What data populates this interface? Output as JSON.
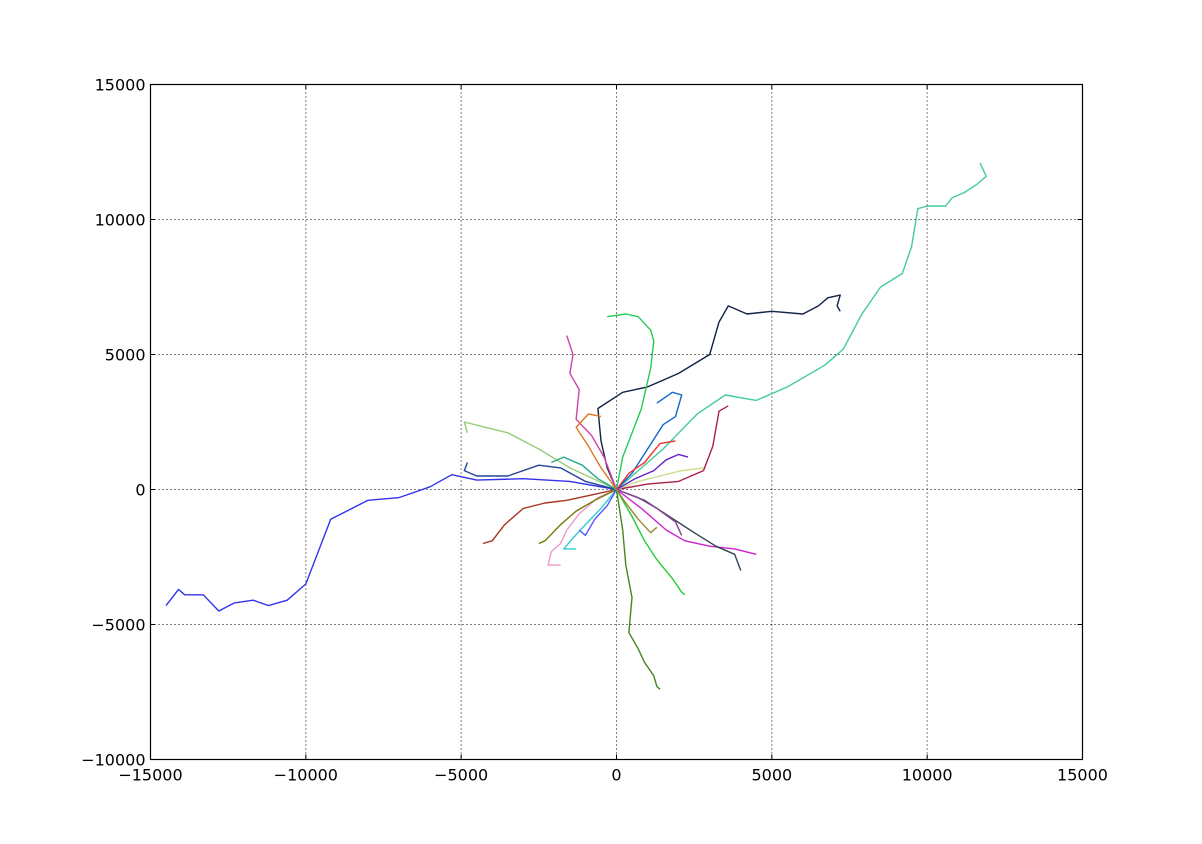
{
  "chart_data": {
    "type": "line",
    "title": "",
    "xlabel": "",
    "ylabel": "",
    "xlim": [
      -15000,
      15000
    ],
    "ylim": [
      -10000,
      15000
    ],
    "grid": true,
    "x_ticks": [
      -15000,
      -10000,
      -5000,
      0,
      5000,
      10000,
      15000
    ],
    "x_tick_labels": [
      "−15000",
      "−10000",
      "−5000",
      "0",
      "5000",
      "10000",
      "15000"
    ],
    "y_ticks": [
      -10000,
      -5000,
      0,
      5000,
      10000,
      15000
    ],
    "y_tick_labels": [
      "−10000",
      "−5000",
      "0",
      "5000",
      "10000",
      "15000"
    ],
    "series": [
      {
        "color": "#3333ee",
        "x": [
          0,
          -1500,
          -3000,
          -4500,
          -5300,
          -6000,
          -7000,
          -8000,
          -9200,
          -10000,
          -10600,
          -11200,
          -11700,
          -12300,
          -12800,
          -13300,
          -13900,
          -14100,
          -14500
        ],
        "y": [
          0,
          300,
          400,
          350,
          550,
          100,
          -300,
          -400,
          -1100,
          -3500,
          -4100,
          -4300,
          -4100,
          -4200,
          -4500,
          -3900,
          -3900,
          -3700,
          -4300
        ]
      },
      {
        "color": "#44cc99",
        "x": [
          0,
          1500,
          2600,
          3500,
          4500,
          5500,
          6700,
          7300,
          7900,
          8500,
          9200,
          9500,
          9700,
          10000,
          10600,
          10800,
          11200,
          11600,
          11900,
          11700
        ],
        "y": [
          0,
          1500,
          2800,
          3500,
          3300,
          3800,
          4600,
          5200,
          6500,
          7500,
          8000,
          9000,
          10400,
          10500,
          10500,
          10800,
          11000,
          11300,
          11600,
          12100
        ]
      },
      {
        "color": "#112244",
        "x": [
          0,
          -300,
          -500,
          -600,
          200,
          1000,
          2000,
          3000,
          3300,
          3600,
          4200,
          5000,
          6000,
          6500,
          6800,
          7200,
          7100,
          7200
        ],
        "y": [
          0,
          800,
          1800,
          3000,
          3600,
          3800,
          4300,
          5000,
          6200,
          6800,
          6500,
          6600,
          6500,
          6800,
          7100,
          7200,
          6800,
          6600
        ]
      },
      {
        "color": "#22cc55",
        "x": [
          0,
          200,
          800,
          1100,
          1200,
          1100,
          700,
          300,
          -300
        ],
        "y": [
          0,
          1200,
          3000,
          4500,
          5500,
          5900,
          6400,
          6500,
          6400
        ]
      },
      {
        "color": "#448822",
        "x": [
          0,
          200,
          300,
          500,
          400,
          700,
          900,
          1200,
          1300,
          1400
        ],
        "y": [
          0,
          -1500,
          -2800,
          -4000,
          -5300,
          -5900,
          -6400,
          -6900,
          -7300,
          -7400
        ]
      },
      {
        "color": "#cc44aa",
        "x": [
          0,
          -400,
          -800,
          -1300,
          -1200,
          -1500,
          -1400,
          -1600
        ],
        "y": [
          0,
          1200,
          2000,
          2600,
          3700,
          4300,
          5000,
          5700
        ]
      },
      {
        "color": "#99cc77",
        "x": [
          0,
          -1500,
          -2500,
          -3500,
          -4200,
          -4900,
          -4800
        ],
        "y": [
          0,
          800,
          1500,
          2100,
          2300,
          2500,
          2100
        ]
      },
      {
        "color": "#224499",
        "x": [
          0,
          -1000,
          -1800,
          -2500,
          -3500,
          -4500,
          -4900,
          -4800
        ],
        "y": [
          0,
          300,
          800,
          900,
          500,
          500,
          700,
          1000
        ]
      },
      {
        "color": "#aa2244",
        "x": [
          0,
          1000,
          2000,
          2800,
          3100,
          3300,
          3600
        ],
        "y": [
          0,
          200,
          300,
          700,
          1600,
          2900,
          3100
        ]
      },
      {
        "color": "#cc22cc",
        "x": [
          0,
          800,
          1600,
          2200,
          3000,
          3800,
          4500
        ],
        "y": [
          0,
          -700,
          -1500,
          -1900,
          -2100,
          -2200,
          -2400
        ]
      },
      {
        "color": "#aa3322",
        "x": [
          0,
          -800,
          -1600,
          -2300,
          -3000,
          -3600,
          -4000,
          -4300
        ],
        "y": [
          0,
          -200,
          -400,
          -500,
          -700,
          -1300,
          -1900,
          -2000
        ]
      },
      {
        "color": "#ee99cc",
        "x": [
          0,
          -600,
          -1200,
          -1600,
          -1800,
          -2100,
          -2200,
          -1800
        ],
        "y": [
          0,
          -300,
          -900,
          -1500,
          -2000,
          -2300,
          -2800,
          -2800
        ]
      },
      {
        "color": "#1166cc",
        "x": [
          0,
          500,
          1000,
          1500,
          1900,
          2100,
          1800,
          1300
        ],
        "y": [
          0,
          600,
          1500,
          2400,
          2700,
          3500,
          3600,
          3200
        ]
      },
      {
        "color": "#22cc33",
        "x": [
          0,
          500,
          900,
          1300,
          1800,
          2100,
          2200
        ],
        "y": [
          0,
          -1000,
          -1900,
          -2600,
          -3300,
          -3800,
          -3900
        ]
      },
      {
        "color": "#334455",
        "x": [
          0,
          900,
          1700,
          2500,
          3200,
          3800,
          4000
        ],
        "y": [
          0,
          -400,
          -1000,
          -1600,
          -2100,
          -2400,
          -3000
        ]
      },
      {
        "color": "#33cccc",
        "x": [
          0,
          -500,
          -1000,
          -1400,
          -1700,
          -1300
        ],
        "y": [
          0,
          -700,
          -1300,
          -1800,
          -2200,
          -2200
        ]
      },
      {
        "color": "#ccdd88",
        "x": [
          0,
          700,
          1400,
          2100,
          2800
        ],
        "y": [
          0,
          300,
          500,
          700,
          800
        ]
      },
      {
        "color": "#777700",
        "x": [
          0,
          -700,
          -1300,
          -1800,
          -2300,
          -2500
        ],
        "y": [
          0,
          -400,
          -800,
          -1300,
          -1900,
          -2000
        ]
      },
      {
        "color": "#6622cc",
        "x": [
          0,
          600,
          1200,
          1600,
          2000,
          2300
        ],
        "y": [
          0,
          400,
          700,
          1100,
          1300,
          1200
        ]
      },
      {
        "color": "#dd7722",
        "x": [
          0,
          -500,
          -900,
          -1300,
          -900,
          -500
        ],
        "y": [
          0,
          800,
          1600,
          2300,
          2800,
          2700
        ]
      },
      {
        "color": "#884499",
        "x": [
          0,
          700,
          1300,
          1900,
          2100
        ],
        "y": [
          0,
          -300,
          -700,
          -1200,
          -1700
        ]
      },
      {
        "color": "#22aa88",
        "x": [
          0,
          -600,
          -1100,
          -1700,
          -2100
        ],
        "y": [
          0,
          400,
          900,
          1200,
          1000
        ]
      },
      {
        "color": "#ee3333",
        "x": [
          0,
          400,
          900,
          1400,
          1900
        ],
        "y": [
          0,
          600,
          1000,
          1700,
          1800
        ]
      },
      {
        "color": "#5555ff",
        "x": [
          0,
          -300,
          -700,
          -1000,
          -1200
        ],
        "y": [
          0,
          -600,
          -1100,
          -1700,
          -1500
        ]
      },
      {
        "color": "#998833",
        "x": [
          0,
          300,
          700,
          1100,
          1300
        ],
        "y": [
          0,
          -500,
          -1100,
          -1600,
          -1400
        ]
      }
    ]
  }
}
